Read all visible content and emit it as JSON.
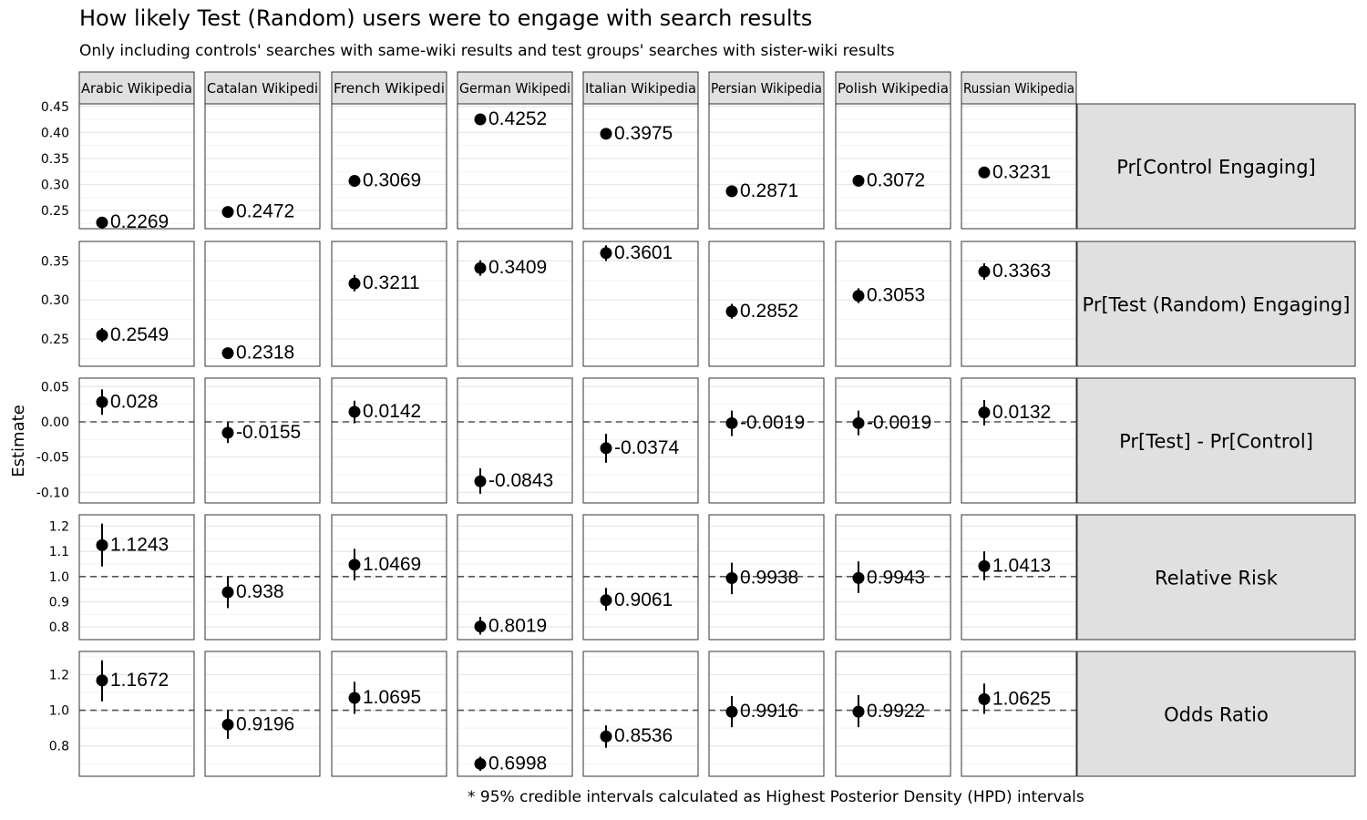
{
  "chart_data": {
    "type": "scatter",
    "title": "How likely Test (Random) users were to engage with search results",
    "subtitle": "Only including controls' searches with same-wiki results and test groups' searches with sister-wiki results",
    "caption": "* 95% credible intervals calculated as Highest Posterior Density (HPD) intervals",
    "ylabel": "Estimate",
    "columns": [
      "Arabic Wikipedia",
      "Catalan Wikipedia",
      "French Wikipedia",
      "German Wikipedia",
      "Italian Wikipedia",
      "Persian Wikipedia",
      "Polish Wikipedia",
      "Russian Wikipedia"
    ],
    "column_labels_visible": [
      "Arabic Wikipedia",
      "Catalan Wikipedi",
      "French Wikipedi",
      "German Wikipedi",
      "Italian Wikipedia",
      "Persian Wikipedia",
      "Polish Wikipedia",
      "Russian Wikipedia"
    ],
    "rows": [
      {
        "name": "Pr[Control Engaging]",
        "ylim": [
          0.215,
          0.455
        ],
        "ticks": [
          0.25,
          0.3,
          0.35,
          0.4,
          0.45
        ],
        "tick_labels": [
          "0.25",
          "0.30",
          "0.35",
          "0.40",
          "0.45"
        ],
        "refline": null,
        "estimates": [
          0.2269,
          0.2472,
          0.3069,
          0.4252,
          0.3975,
          0.2871,
          0.3072,
          0.3231
        ],
        "labels": [
          "0.2269",
          "0.2472",
          "0.3069",
          "0.4252",
          "0.3975",
          "0.2871",
          "0.3072",
          "0.3231"
        ],
        "lower": [
          0.2249,
          0.2452,
          0.3049,
          0.4232,
          0.3955,
          0.2851,
          0.3052,
          0.3211
        ],
        "upper": [
          0.2289,
          0.2492,
          0.3089,
          0.4272,
          0.3995,
          0.2891,
          0.3092,
          0.3251
        ]
      },
      {
        "name": "Pr[Test (Random) Engaging]",
        "ylim": [
          0.215,
          0.375
        ],
        "ticks": [
          0.25,
          0.3,
          0.35
        ],
        "tick_labels": [
          "0.25",
          "0.30",
          "0.35"
        ],
        "refline": null,
        "estimates": [
          0.2549,
          0.2318,
          0.3211,
          0.3409,
          0.3601,
          0.2852,
          0.3053,
          0.3363
        ],
        "labels": [
          "0.2549",
          "0.2318",
          "0.3211",
          "0.3409",
          "0.3601",
          "0.2852",
          "0.3053",
          "0.3363"
        ],
        "lower": [
          0.246,
          0.226,
          0.311,
          0.331,
          0.35,
          0.276,
          0.296,
          0.326
        ],
        "upper": [
          0.264,
          0.238,
          0.332,
          0.351,
          0.37,
          0.295,
          0.315,
          0.347
        ]
      },
      {
        "name": "Pr[Test] - Pr[Control]",
        "ylim": [
          -0.115,
          0.062
        ],
        "ticks": [
          -0.1,
          -0.05,
          0.0,
          0.05
        ],
        "tick_labels": [
          "-0.10",
          "-0.05",
          "0.00",
          "0.05"
        ],
        "refline": 0,
        "estimates": [
          0.028,
          -0.0155,
          0.0142,
          -0.0843,
          -0.0374,
          -0.0019,
          -0.0019,
          0.0132
        ],
        "labels": [
          "0.028",
          "-0.0155",
          "0.0142",
          "-0.0843",
          "-0.0374",
          "-0.0019",
          "-0.0019",
          "0.0132"
        ],
        "lower": [
          0.01,
          -0.03,
          -0.002,
          -0.102,
          -0.058,
          -0.02,
          -0.019,
          -0.005
        ],
        "upper": [
          0.046,
          0.0,
          0.03,
          -0.066,
          -0.017,
          0.016,
          0.016,
          0.031
        ]
      },
      {
        "name": "Relative Risk",
        "ylim": [
          0.75,
          1.245
        ],
        "ticks": [
          0.8,
          0.9,
          1.0,
          1.1,
          1.2
        ],
        "tick_labels": [
          "0.8",
          "0.9",
          "1.0",
          "1.1",
          "1.2"
        ],
        "refline": 1,
        "estimates": [
          1.1243,
          0.938,
          1.0469,
          0.8019,
          0.9061,
          0.9938,
          0.9943,
          1.0413
        ],
        "labels": [
          "1.1243",
          "0.938",
          "1.0469",
          "0.8019",
          "0.9061",
          "0.9938",
          "0.9943",
          "1.0413"
        ],
        "lower": [
          1.04,
          0.875,
          0.985,
          0.77,
          0.865,
          0.93,
          0.935,
          0.985
        ],
        "upper": [
          1.21,
          1.0,
          1.11,
          0.84,
          0.955,
          1.055,
          1.06,
          1.1
        ]
      },
      {
        "name": "Odds Ratio",
        "ylim": [
          0.63,
          1.33
        ],
        "ticks": [
          0.8,
          1.0,
          1.2
        ],
        "tick_labels": [
          "0.8",
          "1.0",
          "1.2"
        ],
        "refline": 1,
        "estimates": [
          1.1672,
          0.9196,
          1.0695,
          0.6998,
          0.8536,
          0.9916,
          0.9922,
          1.0625
        ],
        "labels": [
          "1.1672",
          "0.9196",
          "1.0695",
          "0.6998",
          "0.8536",
          "0.9916",
          "0.9922",
          "1.0625"
        ],
        "lower": [
          1.05,
          0.84,
          0.98,
          0.66,
          0.79,
          0.905,
          0.905,
          0.98
        ],
        "upper": [
          1.28,
          1.0,
          1.16,
          0.74,
          0.915,
          1.08,
          1.085,
          1.15
        ]
      }
    ],
    "grid": true,
    "legend": "none",
    "colors": {
      "point": "#000000",
      "strip_fill": "#e0e0e0",
      "panel_border": "#333333",
      "grid_major": "#e6e6e6",
      "grid_minor": "#f2f2f2",
      "refline": "#555555"
    }
  }
}
